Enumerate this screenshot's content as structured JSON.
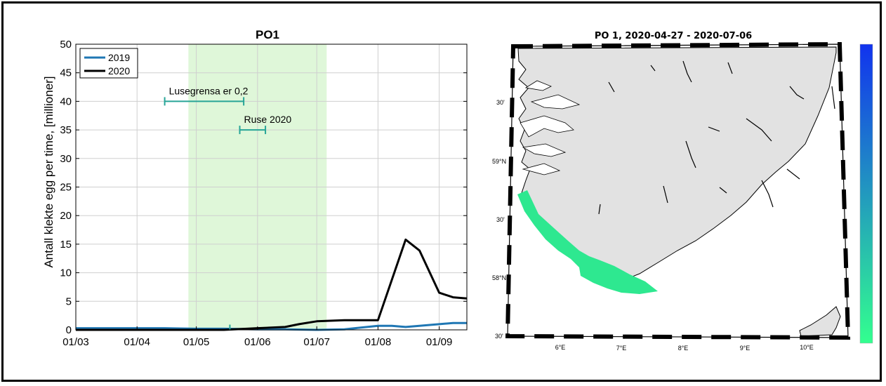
{
  "chart_data": [
    {
      "type": "line",
      "title": "PO1",
      "ylabel": "Antall klekte egg per time, [millioner]",
      "xlabel": "",
      "x_ticks": [
        "01/03",
        "01/04",
        "01/05",
        "01/06",
        "01/07",
        "01/08",
        "01/09"
      ],
      "xlim": [
        "2020-03-01",
        "2020-09-15"
      ],
      "ylim": [
        0,
        50
      ],
      "y_ticks": [
        0,
        5,
        10,
        15,
        20,
        25,
        30,
        35,
        40,
        45,
        50
      ],
      "grid": true,
      "legend": "top-left",
      "shaded_period": {
        "start": "2020-04-27",
        "end": "2020-07-06",
        "color": "#dff7d9"
      },
      "series": [
        {
          "name": "2019",
          "color": "#1f77b4",
          "x": [
            "2020-03-01",
            "2020-03-15",
            "2020-04-01",
            "2020-04-15",
            "2020-05-01",
            "2020-05-15",
            "2020-06-01",
            "2020-06-15",
            "2020-07-01",
            "2020-07-15",
            "2020-08-01",
            "2020-08-08",
            "2020-08-15",
            "2020-08-22",
            "2020-09-01",
            "2020-09-08",
            "2020-09-15"
          ],
          "y": [
            0.3,
            0.3,
            0.3,
            0.3,
            0.2,
            0.2,
            0.1,
            0.1,
            0.0,
            0.1,
            0.7,
            0.7,
            0.5,
            0.7,
            1.0,
            1.2,
            1.2
          ]
        },
        {
          "name": "2020",
          "color": "#000000",
          "x": [
            "2020-03-01",
            "2020-03-15",
            "2020-04-01",
            "2020-04-15",
            "2020-05-01",
            "2020-05-15",
            "2020-06-01",
            "2020-06-15",
            "2020-06-22",
            "2020-07-01",
            "2020-07-08",
            "2020-07-15",
            "2020-08-01",
            "2020-08-15",
            "2020-08-22",
            "2020-09-01",
            "2020-09-08",
            "2020-09-15"
          ],
          "y": [
            0.0,
            0.0,
            0.0,
            0.0,
            0.0,
            0.0,
            0.3,
            0.5,
            1.0,
            1.5,
            1.6,
            1.7,
            1.7,
            15.8,
            13.9,
            6.5,
            5.7,
            5.5
          ]
        }
      ],
      "annotations": [
        {
          "label": "Lusegrensa er 0,2",
          "x_start": "2020-04-15",
          "x_end": "2020-05-25",
          "y": 40,
          "color": "#27a597"
        },
        {
          "label": "Ruse 2020",
          "x_start": "2020-05-23",
          "x_end": "2020-06-05",
          "y": 35,
          "color": "#27a597"
        }
      ],
      "markers": [
        {
          "x": "2020-05-18",
          "y": 0.3,
          "color": "#27a597"
        }
      ]
    },
    {
      "type": "map",
      "title": "PO 1, 2020-04-27 - 2020-07-06",
      "lat_labels": [
        "30'",
        "59°N",
        "30'",
        "58°N",
        "30'"
      ],
      "lon_labels": [
        "6°E",
        "7°E",
        "8°E",
        "9°E",
        "10°E"
      ],
      "land_color": "#e2e2e2",
      "sea_color": "#ffffff",
      "highlight_color": "#2ee890",
      "colorbar": {
        "top_color": "#1133ee",
        "bottom_color": "#33ff8f"
      }
    }
  ]
}
